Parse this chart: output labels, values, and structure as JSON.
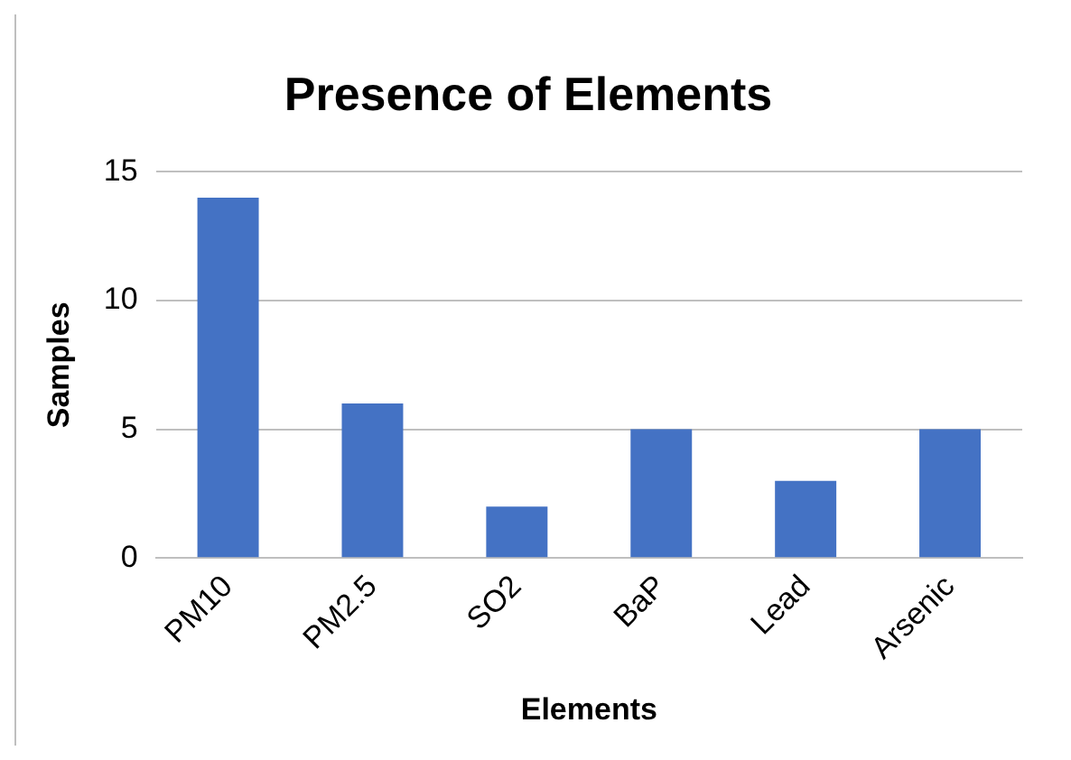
{
  "chart_data": {
    "type": "bar",
    "title": "Presence of Elements",
    "xlabel": "Elements",
    "ylabel": "Samples",
    "categories": [
      "PM10",
      "PM2.5",
      "SO2",
      "BaP",
      "Lead",
      "Arsenic"
    ],
    "values": [
      14,
      6,
      2,
      5,
      3,
      5
    ],
    "color": "#4472c4",
    "ylim": [
      0,
      15
    ],
    "yticks": [
      0,
      5,
      10,
      15
    ],
    "grid": "y",
    "legend": false
  }
}
